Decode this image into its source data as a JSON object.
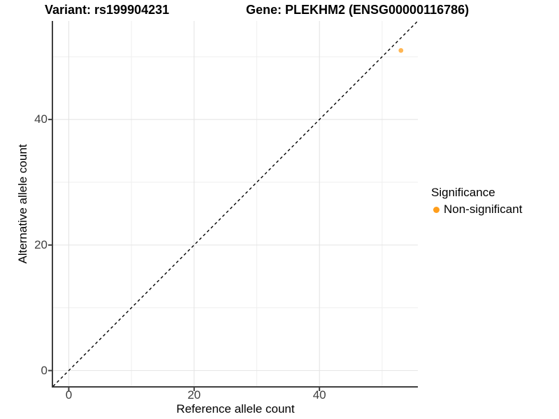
{
  "chart_data": {
    "type": "scatter",
    "title_left": "Variant: rs199904231",
    "title_right": "Gene: PLEKHM2 (ENSG00000116786)",
    "xlabel": "Reference allele count",
    "ylabel": "Alternative allele count",
    "xlim": [
      -2.5,
      55.7
    ],
    "ylim": [
      -2.6,
      55.7
    ],
    "x_major_ticks": [
      0,
      20,
      40
    ],
    "x_minor_ticks": [
      10,
      30,
      50
    ],
    "y_major_ticks": [
      0,
      20,
      40
    ],
    "y_minor_ticks": [
      10,
      30,
      50
    ],
    "grid": "major+minor",
    "identity_line": {
      "type": "y=x",
      "style": "dashed",
      "color": "#000000"
    },
    "series": [
      {
        "name": "Non-significant",
        "color": "#FF9E1B",
        "point_opacity": 0.75,
        "points": [
          {
            "x": 53,
            "y": 51
          }
        ]
      }
    ],
    "legend": {
      "title": "Significance",
      "position": "right",
      "entries": [
        {
          "label": "Non-significant",
          "color": "#FF9E1B",
          "marker": "circle"
        }
      ]
    }
  },
  "colors": {
    "background": "#FFFFFF",
    "grid_major": "#E4E4E4",
    "grid_minor": "#EFEFEF",
    "axis_line": "#3F3F3F",
    "tick_label": "#404040",
    "point_orange": "#FF9E1B"
  }
}
